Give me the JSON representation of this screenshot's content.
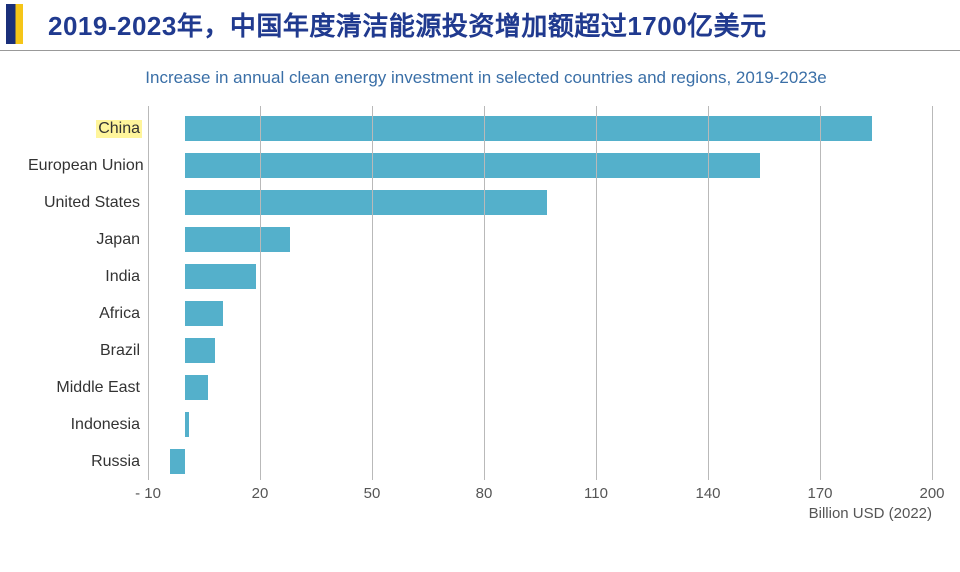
{
  "header": {
    "title_cn": "2019-2023年，中国年度清洁能源投资增加额超过1700亿美元"
  },
  "chart": {
    "type": "bar",
    "orientation": "horizontal",
    "title": "Increase in annual clean energy investment in selected countries and regions, 2019-2023e",
    "xlim": [
      -10,
      200
    ],
    "xticks": [
      -10,
      20,
      50,
      80,
      110,
      140,
      170,
      200
    ],
    "x_axis_label": "Billion USD (2022)",
    "bar_color": "#54b0cb",
    "gridline_color": "#b9b9b9",
    "tick_font_color": "#555555",
    "tick_fontsize": 15,
    "title_color": "#3a6fa7",
    "title_fontsize": 17,
    "header_title_color": "#203a8f",
    "header_title_fontsize": 26,
    "highlight_bg": "#fff59b",
    "categories": [
      {
        "label": "China",
        "value": 184,
        "highlight": true
      },
      {
        "label": "European Union",
        "value": 154,
        "highlight": false
      },
      {
        "label": "United States",
        "value": 97,
        "highlight": false
      },
      {
        "label": "Japan",
        "value": 28,
        "highlight": false
      },
      {
        "label": "India",
        "value": 19,
        "highlight": false
      },
      {
        "label": "Africa",
        "value": 10,
        "highlight": false
      },
      {
        "label": "Brazil",
        "value": 8,
        "highlight": false
      },
      {
        "label": "Middle East",
        "value": 6,
        "highlight": false
      },
      {
        "label": "Indonesia",
        "value": 1,
        "highlight": false
      },
      {
        "label": "Russia",
        "value": -4,
        "highlight": false
      }
    ]
  }
}
